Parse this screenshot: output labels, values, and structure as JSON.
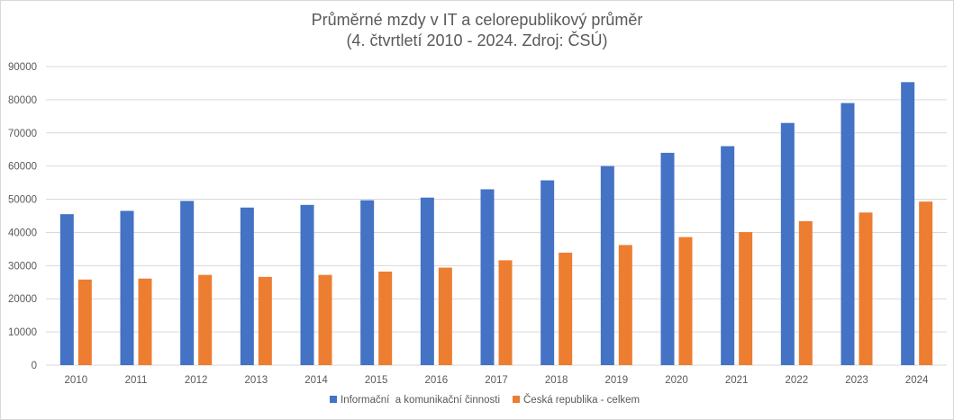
{
  "chart_data": {
    "type": "bar",
    "title": "Průměrné mzdy v IT a celorepublikový průměr",
    "subtitle": "(4. čtvrtletí 2010 - 2024. Zdroj: ČSÚ)",
    "categories": [
      "2010",
      "2011",
      "2012",
      "2013",
      "2014",
      "2015",
      "2016",
      "2017",
      "2018",
      "2019",
      "2020",
      "2021",
      "2022",
      "2023",
      "2024"
    ],
    "series": [
      {
        "name": "Informační  a komunikační činnosti",
        "color": "#4472c4",
        "values": [
          45500,
          46500,
          49500,
          47500,
          48300,
          49700,
          50500,
          53000,
          55700,
          60000,
          64000,
          66000,
          73000,
          79000,
          85300
        ]
      },
      {
        "name": "Česká republika - celkem",
        "color": "#ed7d31",
        "values": [
          25800,
          26100,
          27200,
          26600,
          27200,
          28200,
          29400,
          31600,
          33900,
          36200,
          38600,
          40100,
          43400,
          46000,
          49300
        ]
      }
    ],
    "ylim": [
      0,
      90000
    ],
    "yticks": [
      "0",
      "10000",
      "20000",
      "30000",
      "40000",
      "50000",
      "60000",
      "70000",
      "80000",
      "90000"
    ],
    "grid": true,
    "legend": "bottom"
  }
}
